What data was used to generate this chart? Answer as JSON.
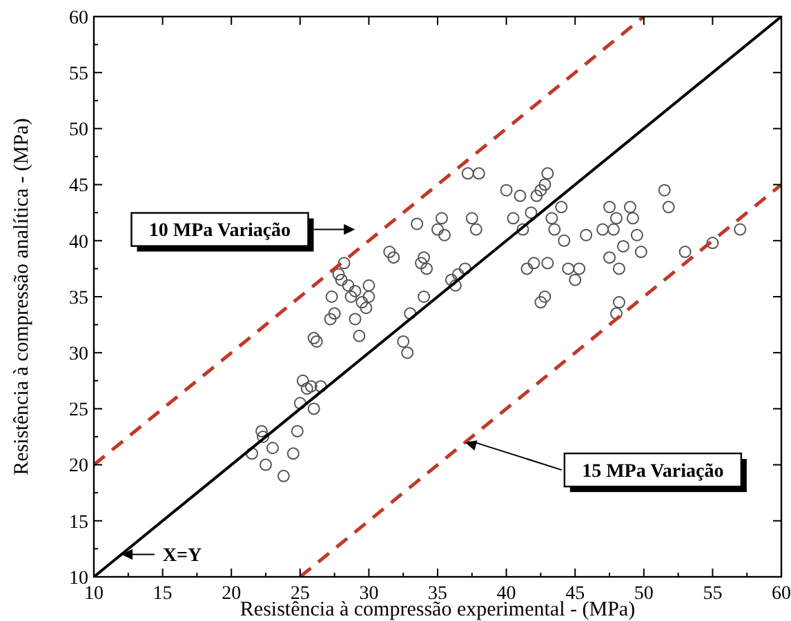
{
  "chart_data": {
    "type": "scatter",
    "xlabel": "Resistência à compressão experimental - (MPa)",
    "ylabel": "Resistência à compressão analítica - (MPa)",
    "xlim": [
      10,
      60
    ],
    "ylim": [
      10,
      60
    ],
    "xticks": [
      10,
      15,
      20,
      25,
      30,
      35,
      40,
      45,
      50,
      55,
      60
    ],
    "yticks": [
      10,
      15,
      20,
      25,
      30,
      35,
      40,
      45,
      50,
      55,
      60
    ],
    "grid": false,
    "marker": "circle",
    "series": [
      {
        "color": "#555555",
        "x": [
          21.5,
          22.2,
          22.3,
          22.5,
          23,
          23.8,
          24.5,
          24.8,
          25,
          25.2,
          25.5,
          25.8,
          26,
          26.5,
          26,
          26.2,
          27.2,
          27.5,
          27.3,
          27.8,
          28,
          28.2,
          28.5,
          28.7,
          29,
          29,
          29.3,
          29.5,
          29.8,
          30,
          30,
          31.5,
          31.8,
          32.5,
          32.8,
          33,
          33.5,
          33.8,
          34,
          34.2,
          34,
          35,
          35.3,
          35.5,
          36,
          36.3,
          36.5,
          37,
          37.2,
          37.5,
          37.8,
          38,
          40,
          40.5,
          41,
          41.2,
          41.5,
          41.8,
          42,
          42.2,
          42.5,
          42.8,
          43,
          43.3,
          43.5,
          42.8,
          42.5,
          43,
          44,
          44.2,
          44.5,
          45,
          45.3,
          45.8,
          47,
          47.5,
          47.8,
          47.5,
          48,
          48.2,
          48.5,
          48,
          48.2,
          49,
          49.2,
          49.5,
          49.8,
          51.5,
          51.8,
          53,
          55,
          57
        ],
        "values": [
          21,
          23,
          22.5,
          20,
          21.5,
          19,
          21,
          23,
          25.5,
          27.5,
          26.8,
          27,
          25,
          27,
          31.3,
          31,
          33,
          33.5,
          35,
          37,
          36.5,
          38,
          36,
          35,
          33,
          35.5,
          31.5,
          34.5,
          34,
          36,
          35,
          39,
          38.5,
          31,
          30,
          33.5,
          41.5,
          38,
          35,
          37.5,
          38.5,
          41,
          42,
          40.5,
          36.5,
          36,
          37,
          37.5,
          46,
          42,
          41,
          46,
          44.5,
          42,
          44,
          41,
          37.5,
          42.5,
          38,
          44,
          44.5,
          45,
          46,
          42,
          41,
          35,
          34.5,
          38,
          43,
          40,
          37.5,
          36.5,
          37.5,
          40.5,
          41,
          38.5,
          41,
          43,
          42,
          37.5,
          39.5,
          33.5,
          34.5,
          43,
          42,
          40.5,
          39,
          44.5,
          43,
          39,
          39.8,
          41
        ]
      },
      {
        "type": "line",
        "color": "#000000",
        "line_style": "solid",
        "marker": "none",
        "x": [
          10,
          60
        ],
        "values": [
          10,
          60
        ]
      },
      {
        "type": "line",
        "color": "#c0392b",
        "line_style": "dashed",
        "marker": "none",
        "x": [
          10,
          50
        ],
        "values": [
          20,
          60
        ]
      },
      {
        "type": "line",
        "color": "#c0392b",
        "line_style": "dashed",
        "marker": "none",
        "x": [
          25,
          60
        ],
        "values": [
          10,
          45
        ]
      }
    ],
    "annotations": [
      "10 MPa Variação",
      {
        "text": "15 MPa Variação",
        "x": 37,
        "y": 22
      },
      {
        "text": "X=Y",
        "x": 12,
        "y": 12
      }
    ]
  }
}
